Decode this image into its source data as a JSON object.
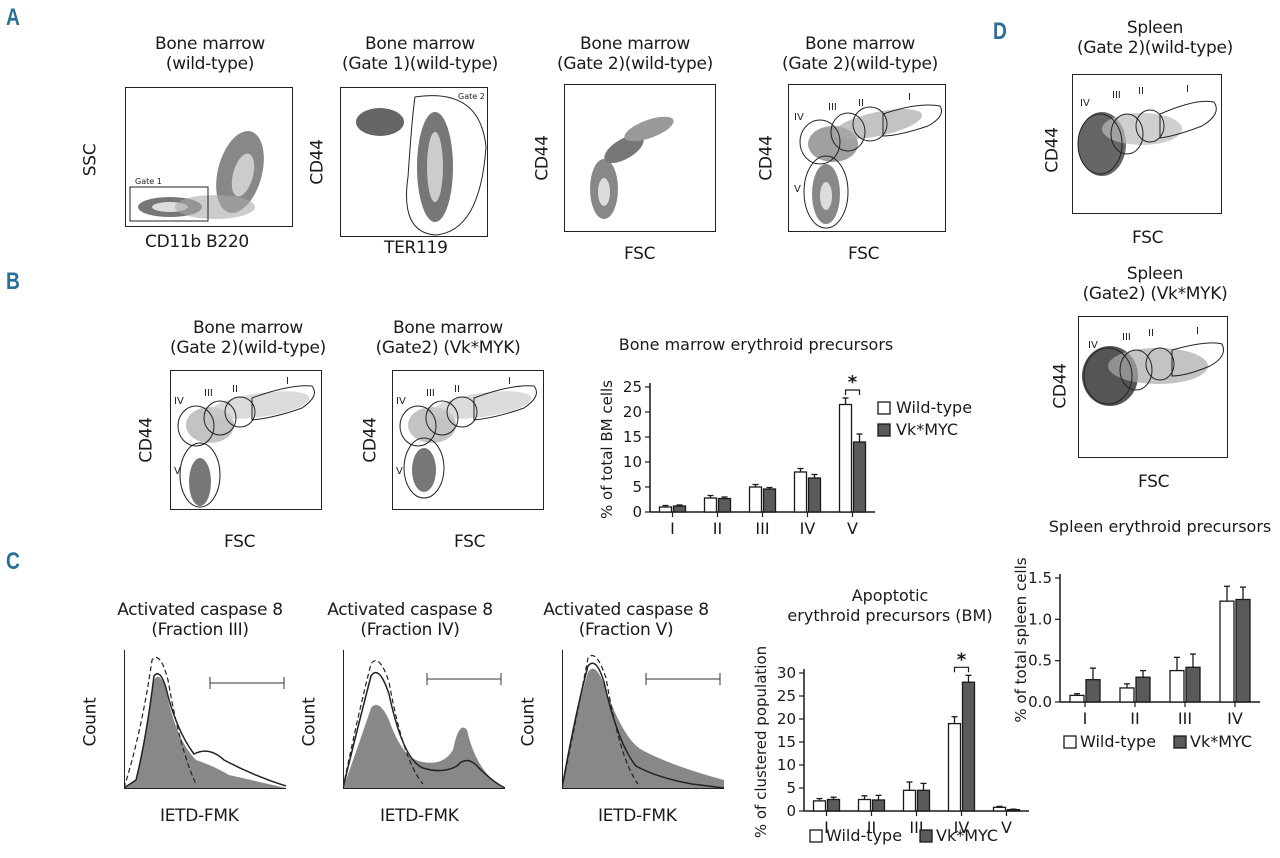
{
  "panels": {
    "A": "A",
    "B": "B",
    "C": "C",
    "D": "D"
  },
  "panel_a": {
    "plots": [
      {
        "title1": "Bone marrow",
        "title2": "(wild-type)",
        "xlabel": "CD11b B220",
        "ylabel": "SSC",
        "gate": "Gate 1"
      },
      {
        "title1": "Bone marrow",
        "title2": "(Gate 1)(wild-type)",
        "xlabel": "TER119",
        "ylabel": "CD44",
        "gate": "Gate 2"
      },
      {
        "title1": "Bone marrow",
        "title2": "(Gate 2)(wild-type)",
        "xlabel": "FSC",
        "ylabel": "CD44"
      },
      {
        "title1": "Bone marrow",
        "title2": "(Gate 2)(wild-type)",
        "xlabel": "FSC",
        "ylabel": "CD44",
        "fractions": [
          "I",
          "II",
          "III",
          "IV",
          "V"
        ]
      }
    ]
  },
  "panel_b": {
    "plots": [
      {
        "title1": "Bone marrow",
        "title2": "(Gate 2)(wild-type)",
        "xlabel": "FSC",
        "ylabel": "CD44",
        "fractions": [
          "I",
          "II",
          "III",
          "IV",
          "V"
        ]
      },
      {
        "title1": "Bone marrow",
        "title2": "(Gate2) (Vk*MYK)",
        "xlabel": "FSC",
        "ylabel": "CD44",
        "fractions": [
          "I",
          "II",
          "III",
          "IV",
          "V"
        ]
      }
    ]
  },
  "panel_c": {
    "plots": [
      {
        "title1": "Activated caspase 8",
        "title2": "(Fraction III)",
        "xlabel": "IETD-FMK",
        "ylabel": "Count"
      },
      {
        "title1": "Activated caspase 8",
        "title2": "(Fraction IV)",
        "xlabel": "IETD-FMK",
        "ylabel": "Count"
      },
      {
        "title1": "Activated caspase 8",
        "title2": "(Fraction V)",
        "xlabel": "IETD-FMK",
        "ylabel": "Count"
      }
    ]
  },
  "panel_d": {
    "plots": [
      {
        "title1": "Spleen",
        "title2": "(Gate 2)(wild-type)",
        "xlabel": "FSC",
        "ylabel": "CD44",
        "fractions": [
          "I",
          "II",
          "III",
          "IV"
        ]
      },
      {
        "title1": "Spleen",
        "title2": "(Gate2) (Vk*MYK)",
        "xlabel": "FSC",
        "ylabel": "CD44",
        "fractions": [
          "I",
          "II",
          "III",
          "IV"
        ]
      }
    ]
  },
  "colors": {
    "wildtype": "#ffffff",
    "vkmyc": "#5a5a5a",
    "stroke": "#1a1a1a",
    "label": "#2a6f97"
  },
  "chart_data": [
    {
      "type": "bar",
      "title": "Bone marrow erythroid precursors",
      "ylabel": "% of total BM cells",
      "xlabel": "",
      "categories": [
        "I",
        "II",
        "III",
        "IV",
        "V"
      ],
      "series": [
        {
          "name": "Wild-type",
          "values": [
            1.0,
            2.8,
            5.0,
            8.0,
            21.5
          ],
          "errors": [
            0.3,
            0.5,
            0.5,
            0.7,
            1.3
          ]
        },
        {
          "name": "Vk*MYC",
          "values": [
            1.2,
            2.7,
            4.6,
            6.8,
            14.0
          ],
          "errors": [
            0.2,
            0.3,
            0.3,
            0.7,
            1.6
          ]
        }
      ],
      "ylim": [
        0,
        25
      ],
      "yticks": [
        0,
        5,
        10,
        15,
        20,
        25
      ],
      "significance": {
        "category": "V",
        "label": "*"
      },
      "legend": "right"
    },
    {
      "type": "bar",
      "title": "Apoptotic erythroid precursors (BM)",
      "title_lines": [
        "Apoptotic",
        "erythroid precursors (BM)"
      ],
      "ylabel": "% of clustered population",
      "xlabel": "",
      "categories": [
        "I",
        "II",
        "III",
        "IV",
        "V"
      ],
      "series": [
        {
          "name": "Wild-type",
          "values": [
            2.2,
            2.5,
            4.5,
            19.0,
            0.8
          ],
          "errors": [
            0.5,
            0.8,
            1.8,
            1.5,
            0.2
          ]
        },
        {
          "name": "Vk*MYC",
          "values": [
            2.5,
            2.4,
            4.5,
            28.0,
            0.3
          ],
          "errors": [
            0.5,
            1.0,
            1.5,
            1.5,
            0.1
          ]
        }
      ],
      "ylim": [
        0,
        30
      ],
      "yticks": [
        0,
        5,
        10,
        15,
        20,
        25,
        30
      ],
      "significance": {
        "category": "IV",
        "label": "*"
      },
      "legend": "bottom"
    },
    {
      "type": "bar",
      "title": "Spleen erythroid precursors",
      "ylabel": "% of total spleen cells",
      "xlabel": "",
      "categories": [
        "I",
        "II",
        "III",
        "IV"
      ],
      "series": [
        {
          "name": "Wild-type",
          "values": [
            0.08,
            0.17,
            0.38,
            1.22
          ],
          "errors": [
            0.02,
            0.05,
            0.16,
            0.18
          ]
        },
        {
          "name": "Vk*MYC",
          "values": [
            0.27,
            0.3,
            0.42,
            1.24
          ],
          "errors": [
            0.14,
            0.08,
            0.16,
            0.15
          ]
        }
      ],
      "ylim": [
        0,
        1.5
      ],
      "yticks": [
        0.0,
        0.5,
        1.0,
        1.5
      ],
      "yticklabels": [
        "0.0",
        "0.5",
        "1.0",
        "1.5"
      ],
      "legend": "bottom"
    }
  ]
}
